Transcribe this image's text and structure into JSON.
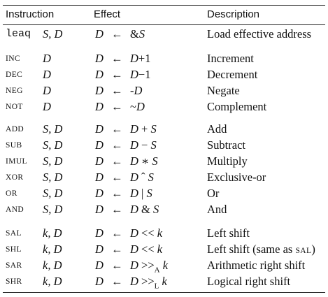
{
  "header": {
    "instruction": "Instruction",
    "effect": "Effect",
    "description": "Description"
  },
  "arrow": "←",
  "rows": [
    {
      "instr": "leaq",
      "ops": "S, D",
      "dst": "D",
      "expr": "&S",
      "desc": "Load effective address"
    },
    {
      "instr": "INC",
      "ops": "D",
      "dst": "D",
      "expr": "D+1",
      "desc": "Increment"
    },
    {
      "instr": "DEC",
      "ops": "D",
      "dst": "D",
      "expr": "D−1",
      "desc": "Decrement"
    },
    {
      "instr": "NEG",
      "ops": "D",
      "dst": "D",
      "expr": "-D",
      "desc": "Negate"
    },
    {
      "instr": "NOT",
      "ops": "D",
      "dst": "D",
      "expr": "~D",
      "desc": "Complement"
    },
    {
      "instr": "ADD",
      "ops": "S, D",
      "dst": "D",
      "expr": "D + S",
      "desc": "Add"
    },
    {
      "instr": "SUB",
      "ops": "S, D",
      "dst": "D",
      "expr": "D − S",
      "desc": "Subtract"
    },
    {
      "instr": "IMUL",
      "ops": "S, D",
      "dst": "D",
      "expr": "D ∗ S",
      "desc": "Multiply"
    },
    {
      "instr": "XOR",
      "ops": "S, D",
      "dst": "D",
      "expr": "D ˆ S",
      "desc": "Exclusive-or"
    },
    {
      "instr": "OR",
      "ops": "S, D",
      "dst": "D",
      "expr": "D | S",
      "desc": "Or"
    },
    {
      "instr": "AND",
      "ops": "S, D",
      "dst": "D",
      "expr": "D & S",
      "desc": "And"
    },
    {
      "instr": "SAL",
      "ops": "k, D",
      "dst": "D",
      "expr": "D << k",
      "desc": "Left shift"
    },
    {
      "instr": "SHL",
      "ops": "k, D",
      "dst": "D",
      "expr": "D << k",
      "desc": "Left shift (same as SAL)"
    },
    {
      "instr": "SAR",
      "ops": "k, D",
      "dst": "D",
      "expr": "D >>A k",
      "desc": "Arithmetic right shift"
    },
    {
      "instr": "SHR",
      "ops": "k, D",
      "dst": "D",
      "expr": "D >>L k",
      "desc": "Logical right shift"
    }
  ]
}
